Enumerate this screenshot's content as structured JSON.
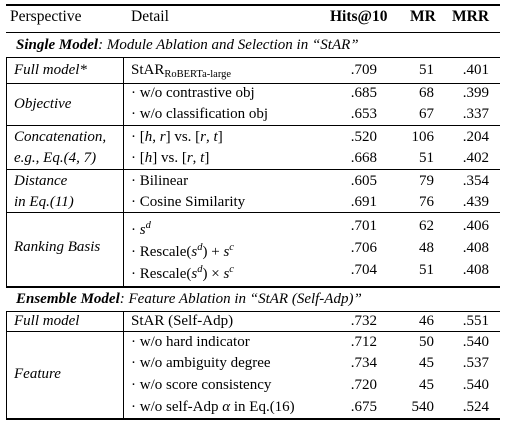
{
  "header": {
    "perspective": "Perspective",
    "detail": "Detail",
    "hits": "Hits@10",
    "mr": "MR",
    "mrr": "MRR"
  },
  "section1": {
    "bold": "Single Model",
    "rest": ": Module Ablation and Selection in “StAR”"
  },
  "section2": {
    "bold": "Ensemble Model",
    "rest": ": Feature Ablation in “StAR (Self-Adp)”"
  },
  "groups": {
    "full_model_star": "Full model*",
    "objective": "Objective",
    "concat_1": "Concatenation,",
    "concat_2": "e.g., Eq.(4, 7)",
    "distance_1": "Distance",
    "distance_2": "in Eq.(11)",
    "ranking": "Ranking Basis",
    "full_model": "Full model",
    "feature": "Feature"
  },
  "rows": [
    {
      "detail": "StAR",
      "sub": "RoBERTa-large",
      "hits": ".709",
      "mr": "51",
      "mrr": ".401"
    },
    {
      "detail": "· w/o contrastive obj",
      "hits": ".685",
      "mr": "68",
      "mrr": ".399"
    },
    {
      "detail": "· w/o classification obj",
      "hits": ".653",
      "mr": "67",
      "mrr": ".337"
    },
    {
      "detail": "· [h, r] vs. [r, t]",
      "hits": ".520",
      "mr": "106",
      "mrr": ".204"
    },
    {
      "detail": "· [h] vs. [r, t]",
      "hits": ".668",
      "mr": "51",
      "mrr": ".402"
    },
    {
      "detail": "· Bilinear",
      "hits": ".605",
      "mr": "79",
      "mrr": ".354"
    },
    {
      "detail": "· Cosine Similarity",
      "hits": ".691",
      "mr": "76",
      "mrr": ".439"
    },
    {
      "detail": "· s^d",
      "hits": ".701",
      "mr": "62",
      "mrr": ".406"
    },
    {
      "detail": "· Rescale(s^d) + s^c",
      "hits": ".706",
      "mr": "48",
      "mrr": ".408"
    },
    {
      "detail": "· Rescale(s^d) × s^c",
      "hits": ".704",
      "mr": "51",
      "mrr": ".408"
    },
    {
      "detail": "StAR (Self-Adp)",
      "hits": ".732",
      "mr": "46",
      "mrr": ".551"
    },
    {
      "detail": "· w/o hard indicator",
      "hits": ".712",
      "mr": "50",
      "mrr": ".540"
    },
    {
      "detail": "· w/o ambiguity degree",
      "hits": ".734",
      "mr": "45",
      "mrr": ".537"
    },
    {
      "detail": "· w/o score consistency",
      "hits": ".720",
      "mr": "45",
      "mrr": ".540"
    },
    {
      "detail": "· w/o self-Adp α in Eq.(16)",
      "hits": ".675",
      "mr": "540",
      "mrr": ".524"
    }
  ]
}
